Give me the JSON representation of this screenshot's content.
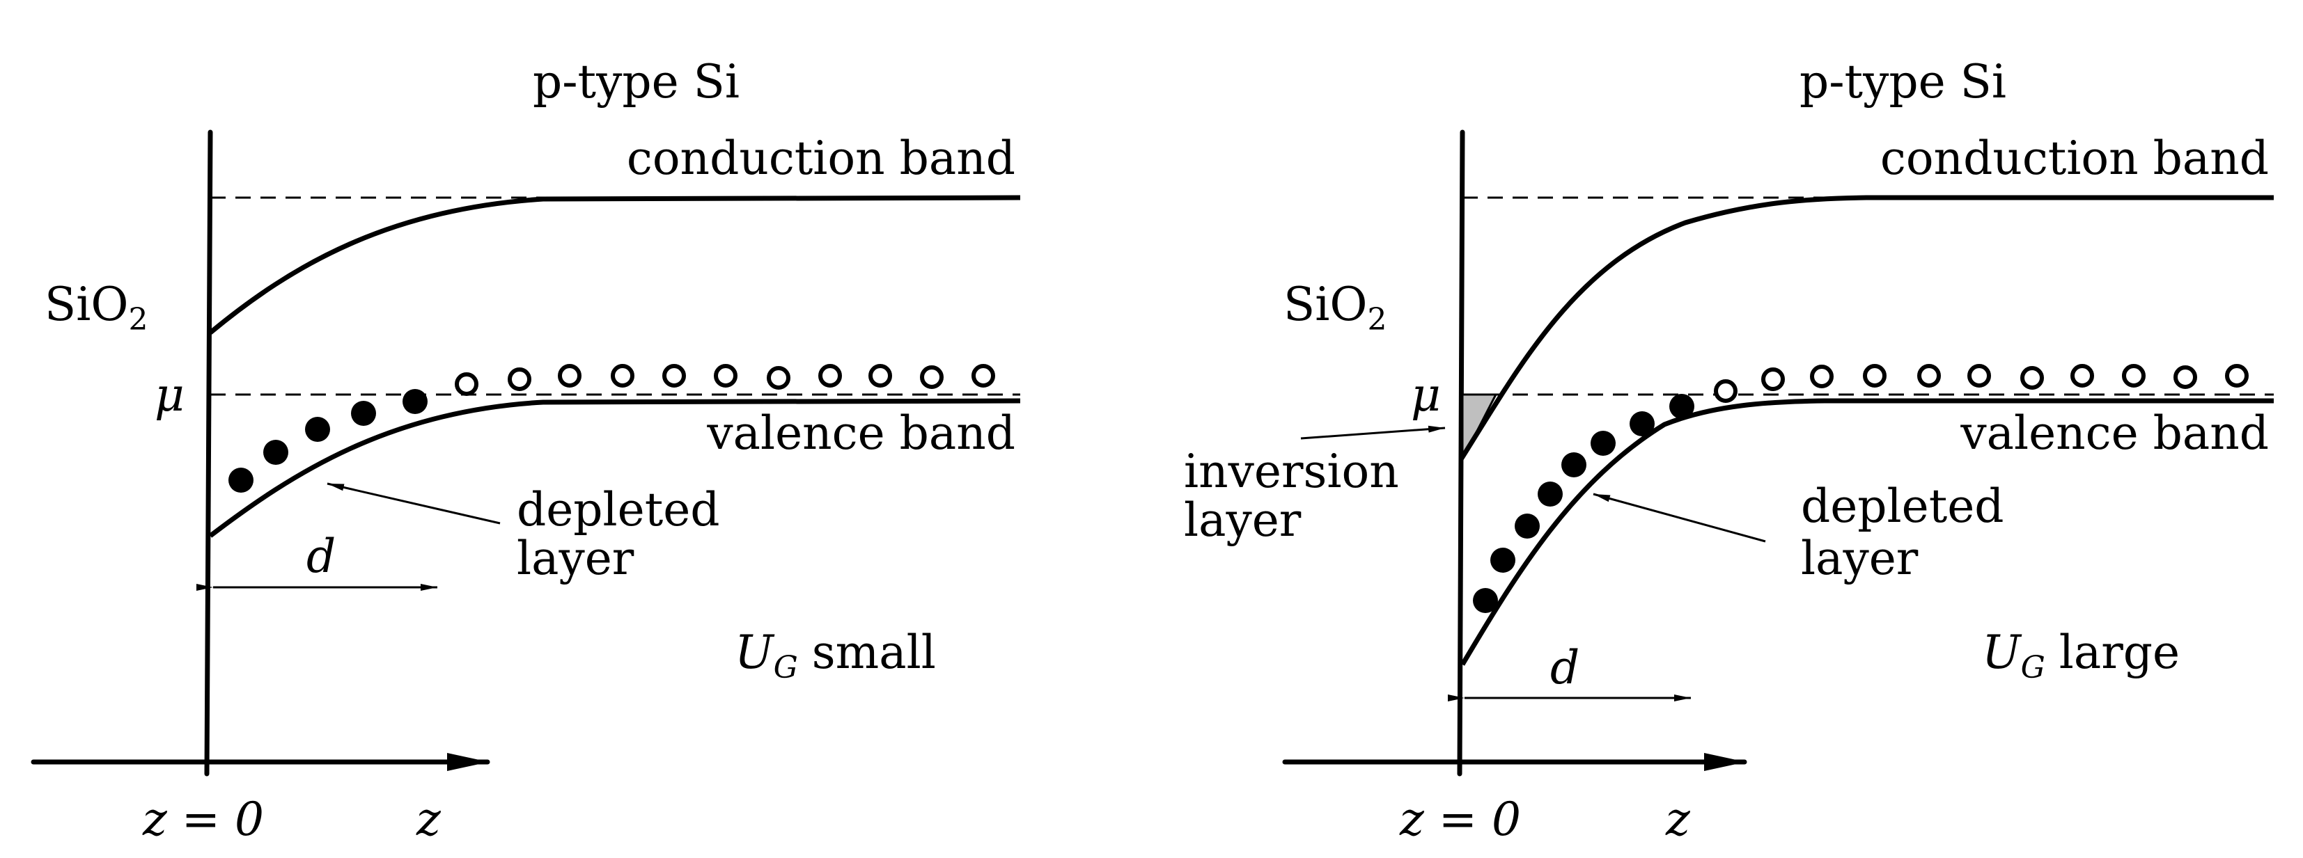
{
  "panels": [
    {
      "material_label": "p-type Si",
      "conduction_label": "conduction band",
      "valence_label": "valence band",
      "oxide_label": "SiO",
      "oxide_sub": "2",
      "mu_label": "μ",
      "depleted_label_1": "depleted",
      "depleted_label_2": "layer",
      "d_label": "d",
      "ug_label": "U",
      "ug_sub": "G",
      "ug_state": "small",
      "origin_label": "z = 0",
      "axis_label": "z",
      "filled_dots": 5,
      "open_dots": 11
    },
    {
      "material_label": "p-type Si",
      "conduction_label": "conduction band",
      "valence_label": "valence band",
      "oxide_label": "SiO",
      "oxide_sub": "2",
      "mu_label": "μ",
      "depleted_label_1": "depleted",
      "depleted_label_2": "layer",
      "inversion_label_1": "inversion",
      "inversion_label_2": "layer",
      "d_label": "d",
      "ug_label": "U",
      "ug_sub": "G",
      "ug_state": "large",
      "origin_label": "z = 0",
      "axis_label": "z",
      "filled_dots": 8,
      "open_dots": 11
    }
  ]
}
